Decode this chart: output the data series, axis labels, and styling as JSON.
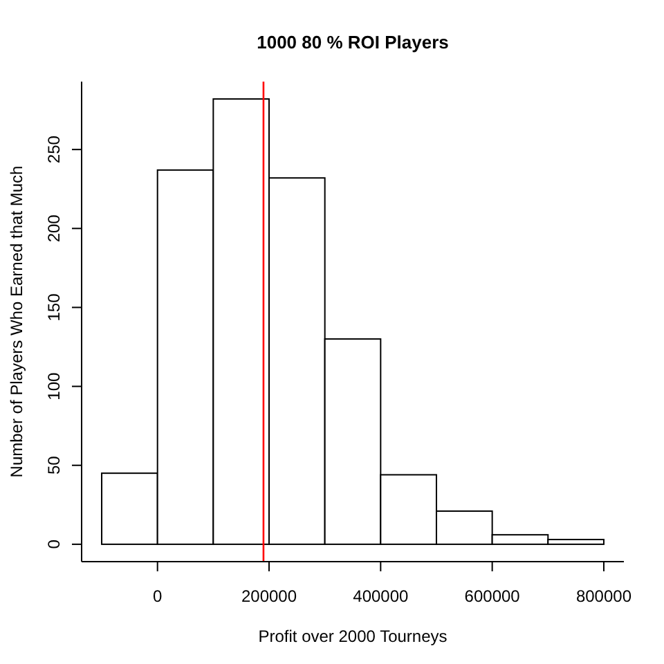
{
  "chart_data": {
    "type": "histogram",
    "title": "1000 80 % ROI Players",
    "xlabel": "Profit over 2000 Tourneys",
    "ylabel": "Number of Players Who Earned that Much",
    "bins": [
      -100000,
      0,
      100000,
      200000,
      300000,
      400000,
      500000,
      600000,
      700000,
      800000
    ],
    "values": [
      45,
      237,
      282,
      232,
      130,
      44,
      21,
      6,
      3
    ],
    "color": "#ffffff",
    "xlim": [
      -136000,
      836000
    ],
    "xticks": [
      0,
      200000,
      400000,
      600000,
      800000
    ],
    "ylim": [
      -11,
      293
    ],
    "yticks": [
      0,
      50,
      100,
      150,
      200,
      250
    ],
    "ref_lines": [
      {
        "axis": "x",
        "value": 190000,
        "color": "#ff0000"
      }
    ]
  }
}
